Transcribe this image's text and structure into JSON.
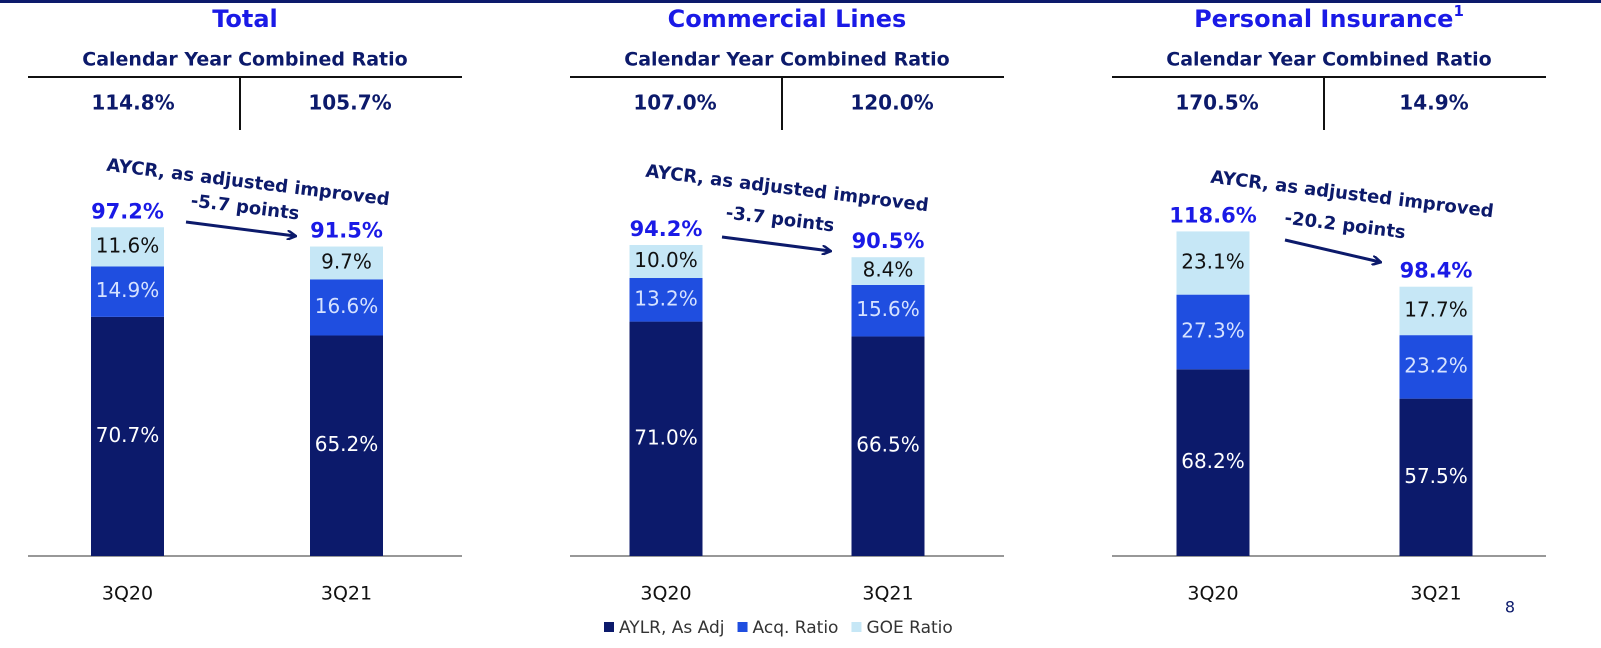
{
  "chart_data": [
    {
      "type": "bar",
      "stacked": true,
      "title": "Total",
      "subtitle": "Calendar Year Combined Ratio",
      "calendar_year_ratios": [
        "114.8%",
        "105.7%"
      ],
      "annotation": [
        "AYCR, as adjusted improved",
        "-5.7 points"
      ],
      "categories": [
        "3Q20",
        "3Q21"
      ],
      "total_labels": [
        "97.2%",
        "91.5%"
      ],
      "ylim": [
        0,
        123
      ],
      "series": [
        {
          "name": "AYLR, As Adj",
          "color": "#0c1a6b",
          "values": [
            70.7,
            65.2
          ],
          "value_labels": [
            "70.7%",
            "65.2%"
          ]
        },
        {
          "name": "Acq. Ratio",
          "color": "#1f4ee0",
          "values": [
            14.9,
            16.6
          ],
          "value_labels": [
            "14.9%",
            "16.6%"
          ]
        },
        {
          "name": "GOE Ratio",
          "color": "#c6e7f6",
          "values": [
            11.6,
            9.7
          ],
          "value_labels": [
            "11.6%",
            "9.7%"
          ]
        }
      ]
    },
    {
      "type": "bar",
      "stacked": true,
      "title": "Commercial Lines",
      "subtitle": "Calendar Year Combined Ratio",
      "calendar_year_ratios": [
        "107.0%",
        "120.0%"
      ],
      "annotation": [
        "AYCR, as adjusted improved",
        "-3.7 points"
      ],
      "categories": [
        "3Q20",
        "3Q21"
      ],
      "total_labels": [
        "94.2%",
        "90.5%"
      ],
      "ylim": [
        0,
        126
      ],
      "series": [
        {
          "color": "#0c1a6b",
          "values": [
            71.0,
            66.5
          ],
          "value_labels": [
            "71.0%",
            "66.5%"
          ]
        },
        {
          "color": "#1f4ee0",
          "values": [
            13.2,
            15.6
          ],
          "value_labels": [
            "13.2%",
            "15.6%"
          ]
        },
        {
          "color": "#c6e7f6",
          "values": [
            10.0,
            8.4
          ],
          "value_labels": [
            "10.0%",
            "8.4%"
          ]
        }
      ]
    },
    {
      "type": "bar",
      "stacked": true,
      "title": "Personal Insurance",
      "title_note": "1",
      "subtitle": "Calendar Year Combined Ratio",
      "calendar_year_ratios": [
        "170.5%",
        "14.9%"
      ],
      "annotation": [
        "AYCR, as adjusted improved",
        "-20.2 points"
      ],
      "categories": [
        "3Q20",
        "3Q21"
      ],
      "total_labels": [
        "118.6%",
        "98.4%"
      ],
      "ylim": [
        0,
        152
      ],
      "series": [
        {
          "color": "#0c1a6b",
          "values": [
            68.2,
            57.5
          ],
          "value_labels": [
            "68.2%",
            "57.5%"
          ]
        },
        {
          "color": "#1f4ee0",
          "values": [
            27.3,
            23.2
          ],
          "value_labels": [
            "27.3%",
            "23.2%"
          ]
        },
        {
          "color": "#c6e7f6",
          "values": [
            23.1,
            17.7
          ],
          "value_labels": [
            "23.1%",
            "17.7%"
          ]
        }
      ]
    }
  ],
  "page_number": "8"
}
